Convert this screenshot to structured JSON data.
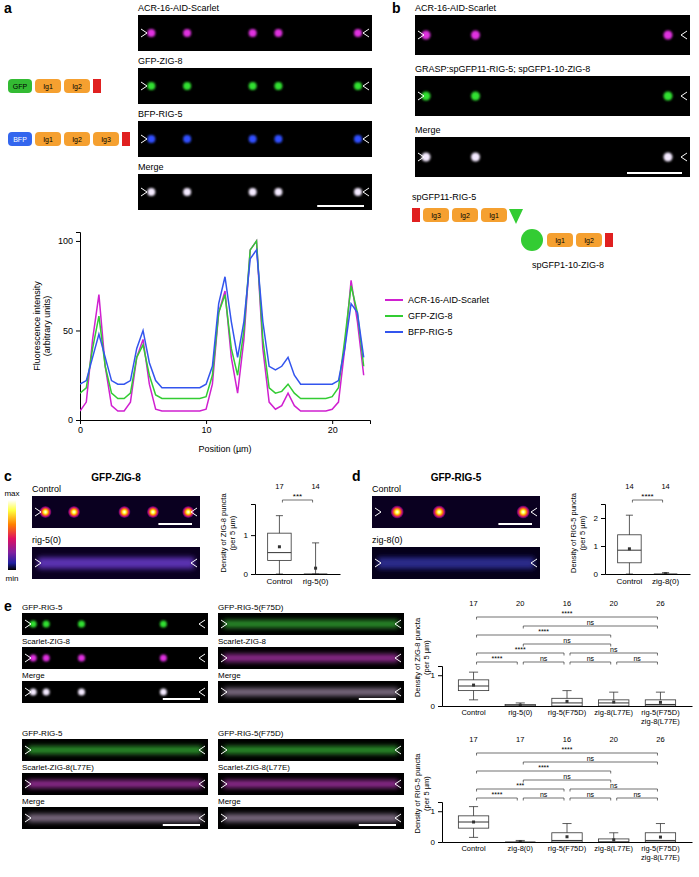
{
  "chart_data": [
    {
      "type": "line",
      "x": [
        0,
        0.5,
        1,
        1.5,
        2,
        2.5,
        3,
        3.5,
        4,
        4.5,
        5,
        5.5,
        6,
        6.5,
        7,
        7.5,
        8,
        8.5,
        9,
        9.5,
        10,
        10.5,
        11,
        11.5,
        12,
        12.5,
        13,
        13.5,
        14,
        14.5,
        15,
        15.5,
        16,
        16.5,
        17,
        17.5,
        18,
        18.5,
        19,
        19.5,
        20,
        20.5,
        21,
        21.5,
        22,
        22.5
      ],
      "series": [
        {
          "name": "ACR-16-AID-Scarlet",
          "color": "#d020d0",
          "values": [
            5,
            10,
            45,
            70,
            30,
            8,
            5,
            5,
            10,
            35,
            45,
            20,
            6,
            5,
            5,
            5,
            5,
            5,
            5,
            5,
            6,
            20,
            60,
            72,
            35,
            15,
            45,
            95,
            100,
            40,
            10,
            6,
            8,
            15,
            8,
            5,
            5,
            5,
            5,
            5,
            6,
            10,
            40,
            78,
            55,
            25
          ]
        },
        {
          "name": "GFP-ZIG-8",
          "color": "#33cc33",
          "values": [
            15,
            18,
            40,
            58,
            30,
            15,
            12,
            12,
            15,
            35,
            42,
            25,
            14,
            12,
            12,
            12,
            12,
            12,
            12,
            12,
            13,
            25,
            60,
            70,
            40,
            25,
            50,
            95,
            100,
            45,
            18,
            15,
            16,
            20,
            15,
            12,
            12,
            12,
            12,
            12,
            13,
            18,
            45,
            75,
            60,
            30
          ]
        },
        {
          "name": "BFP-RIG-5",
          "color": "#3355ee",
          "values": [
            20,
            22,
            35,
            48,
            35,
            22,
            20,
            20,
            22,
            40,
            50,
            32,
            22,
            18,
            18,
            18,
            18,
            18,
            18,
            18,
            20,
            30,
            65,
            80,
            55,
            35,
            55,
            90,
            95,
            55,
            30,
            28,
            30,
            35,
            25,
            20,
            20,
            20,
            20,
            20,
            20,
            22,
            40,
            65,
            60,
            35
          ]
        }
      ],
      "xlim": [
        0,
        23
      ],
      "xticks": [
        0,
        10,
        20
      ],
      "ylim": [
        0,
        105
      ],
      "yticks": [
        0,
        50,
        100
      ],
      "x_label": "Position (µm)",
      "y_label": "Fluorescence intensity (arbitrary units)",
      "legend": "right"
    },
    {
      "type": "box",
      "categories": [
        "Control",
        "rig-5(0)"
      ],
      "boxes": [
        {
          "min": 0,
          "q1": 0.35,
          "median": 0.55,
          "q3": 1.05,
          "max": 1.5,
          "mean": 0.7
        },
        {
          "min": 0,
          "q1": 0,
          "median": 0,
          "q3": 0,
          "max": 0.8,
          "mean": 0.15
        }
      ],
      "n": [
        17,
        14
      ],
      "comparisons": [
        {
          "pair": [
            0,
            1
          ],
          "label": "***"
        }
      ],
      "ylim": [
        0,
        1.8
      ],
      "yticks": [
        0,
        1
      ],
      "y_label": "Density of ZIG-8 puncta (per 5 µm)"
    },
    {
      "type": "box",
      "categories": [
        "Control",
        "zig-8(0)"
      ],
      "boxes": [
        {
          "min": 0,
          "q1": 0.4,
          "median": 0.85,
          "q3": 1.4,
          "max": 2.1,
          "mean": 0.9
        },
        {
          "min": 0,
          "q1": 0,
          "median": 0,
          "q3": 0,
          "max": 0.05,
          "mean": 0.01
        }
      ],
      "n": [
        14,
        14
      ],
      "comparisons": [
        {
          "pair": [
            0,
            1
          ],
          "label": "****"
        }
      ],
      "ylim": [
        0,
        2.5
      ],
      "yticks": [
        0,
        1,
        2
      ],
      "y_label": "Density of RIG-5 puncta (per 5 µm)"
    },
    {
      "type": "box",
      "categories": [
        "Control",
        "rig-5(0)",
        "rig-5(F75D)",
        "zig-8(L77E)",
        "rig-5(F75D) zig-8(L77E)"
      ],
      "boxes": [
        {
          "min": 0.2,
          "q1": 0.5,
          "median": 0.65,
          "q3": 0.85,
          "max": 1.1,
          "mean": 0.68
        },
        {
          "min": 0,
          "q1": 0,
          "median": 0,
          "q3": 0.05,
          "max": 0.1,
          "mean": 0.03
        },
        {
          "min": 0,
          "q1": 0,
          "median": 0.1,
          "q3": 0.25,
          "max": 0.5,
          "mean": 0.15
        },
        {
          "min": 0,
          "q1": 0,
          "median": 0.1,
          "q3": 0.2,
          "max": 0.45,
          "mean": 0.13
        },
        {
          "min": 0,
          "q1": 0,
          "median": 0.05,
          "q3": 0.2,
          "max": 0.45,
          "mean": 0.12
        }
      ],
      "n": [
        17,
        20,
        16,
        20,
        26
      ],
      "comparisons": [
        {
          "pair": [
            0,
            1
          ],
          "label": "****"
        },
        {
          "pair": [
            0,
            2
          ],
          "label": "****"
        },
        {
          "pair": [
            0,
            3
          ],
          "label": "****"
        },
        {
          "pair": [
            0,
            4
          ],
          "label": "****"
        },
        {
          "pair": [
            1,
            2
          ],
          "label": "ns"
        },
        {
          "pair": [
            1,
            3
          ],
          "label": "ns"
        },
        {
          "pair": [
            1,
            4
          ],
          "label": "ns"
        },
        {
          "pair": [
            2,
            3
          ],
          "label": "ns"
        },
        {
          "pair": [
            2,
            4
          ],
          "label": "ns"
        },
        {
          "pair": [
            3,
            4
          ],
          "label": "ns"
        }
      ],
      "ylim": [
        0,
        1.3
      ],
      "yticks": [
        0,
        1
      ],
      "y_label": "Density of ZIG-8 puncta (per 5 µm)"
    },
    {
      "type": "box",
      "categories": [
        "Control",
        "zig-8(0)",
        "rig-5(F75D)",
        "zig-8(L77E)",
        "rig-5(F75D) zig-8(L77E)"
      ],
      "boxes": [
        {
          "min": 0.15,
          "q1": 0.45,
          "median": 0.65,
          "q3": 0.85,
          "max": 1.15,
          "mean": 0.65
        },
        {
          "min": 0,
          "q1": 0,
          "median": 0,
          "q3": 0,
          "max": 0.05,
          "mean": 0.01
        },
        {
          "min": 0,
          "q1": 0,
          "median": 0.05,
          "q3": 0.3,
          "max": 0.6,
          "mean": 0.17
        },
        {
          "min": 0,
          "q1": 0,
          "median": 0,
          "q3": 0.1,
          "max": 0.3,
          "mean": 0.07
        },
        {
          "min": 0,
          "q1": 0,
          "median": 0.05,
          "q3": 0.3,
          "max": 0.6,
          "mean": 0.16
        }
      ],
      "n": [
        17,
        17,
        16,
        20,
        26
      ],
      "comparisons": [
        {
          "pair": [
            0,
            1
          ],
          "label": "****"
        },
        {
          "pair": [
            0,
            2
          ],
          "label": "***"
        },
        {
          "pair": [
            0,
            3
          ],
          "label": "****"
        },
        {
          "pair": [
            0,
            4
          ],
          "label": "****"
        },
        {
          "pair": [
            1,
            2
          ],
          "label": "ns"
        },
        {
          "pair": [
            1,
            3
          ],
          "label": "ns"
        },
        {
          "pair": [
            1,
            4
          ],
          "label": "ns"
        },
        {
          "pair": [
            2,
            3
          ],
          "label": "ns"
        },
        {
          "pair": [
            2,
            4
          ],
          "label": "ns"
        },
        {
          "pair": [
            3,
            4
          ],
          "label": "ns"
        }
      ],
      "ylim": [
        0,
        1.3
      ],
      "yticks": [
        0,
        1
      ],
      "y_label": "Density of RIG-5 puncta (per 5 µm)"
    }
  ],
  "panels": {
    "letters": [
      "a",
      "b",
      "c",
      "d",
      "e"
    ],
    "a": {
      "images": [
        "ACR-16-AID-Scarlet",
        "GFP-ZIG-8",
        "BFP-RIG-5",
        "Merge"
      ],
      "constructs": [
        {
          "tag": "GFP",
          "domains": [
            "Ig1",
            "Ig2"
          ]
        },
        {
          "tag": "BFP",
          "domains": [
            "Ig1",
            "Ig2",
            "Ig3"
          ]
        }
      ]
    },
    "b": {
      "images": [
        "ACR-16-AID-Scarlet",
        "GRASP:spGFP11-RIG-5; spGFP1-10-ZIG-8",
        "Merge"
      ],
      "construct_top": {
        "label": "spGFP11-RIG-5",
        "domains": [
          "Ig3",
          "Ig2",
          "Ig1"
        ]
      },
      "construct_bottom": {
        "label": "spGFP1-10-ZIG-8",
        "domains": [
          "Ig1",
          "Ig2"
        ]
      }
    },
    "c": {
      "title": "GFP-ZIG-8",
      "images": [
        "Control",
        "rig-5(0)"
      ],
      "colorbar_labels": [
        "max",
        "min"
      ]
    },
    "d": {
      "title": "GFP-RIG-5",
      "images": [
        "Control",
        "zig-8(0)"
      ]
    },
    "e": {
      "groups": [
        [
          "GFP-RIG-5",
          "Scarlet-ZIG-8",
          "Merge"
        ],
        [
          "GFP-RIG-5(F75D)",
          "Scarlet-ZIG-8",
          "Merge"
        ],
        [
          "GFP-RIG-5",
          "Scarlet-ZIG-8(L77E)",
          "Merge"
        ],
        [
          "GFP-RIG-5(F75D)",
          "Scarlet-ZIG-8(L77E)",
          "Merge"
        ]
      ]
    }
  }
}
